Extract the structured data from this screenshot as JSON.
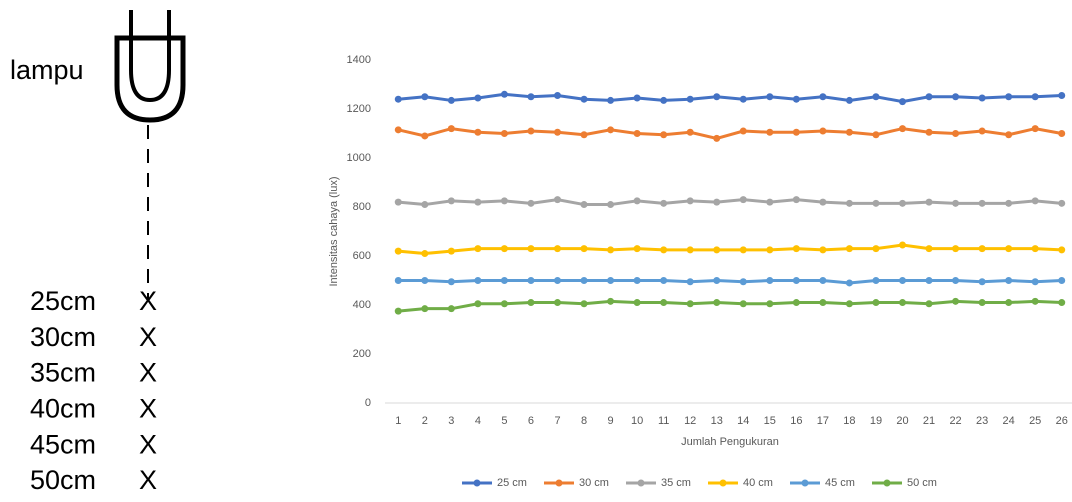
{
  "diagram": {
    "lamp_label": "lampu",
    "distances": [
      "25cm",
      "30cm",
      "35cm",
      "40cm",
      "45cm",
      "50cm"
    ],
    "marker": "X"
  },
  "chart_data": {
    "type": "line",
    "x_label": "Jumlah Pengukuran",
    "y_label": "Intensitas cahaya (lux)",
    "categories": [
      "1",
      "2",
      "3",
      "4",
      "5",
      "6",
      "7",
      "8",
      "9",
      "10",
      "11",
      "12",
      "13",
      "14",
      "15",
      "16",
      "17",
      "18",
      "19",
      "20",
      "21",
      "22",
      "23",
      "24",
      "25",
      "26"
    ],
    "ylim": [
      0,
      1400
    ],
    "yticks": [
      0,
      200,
      400,
      600,
      800,
      1000,
      1200,
      1400
    ],
    "grid": false,
    "legend": "bottom",
    "series": [
      {
        "name": "25 cm",
        "color": "#4472c4",
        "values": [
          1240,
          1250,
          1235,
          1245,
          1260,
          1250,
          1255,
          1240,
          1235,
          1245,
          1235,
          1240,
          1250,
          1240,
          1250,
          1240,
          1250,
          1235,
          1250,
          1230,
          1250,
          1250,
          1245,
          1250,
          1250,
          1255
        ]
      },
      {
        "name": "30 cm",
        "color": "#ed7d31",
        "values": [
          1115,
          1090,
          1120,
          1105,
          1100,
          1110,
          1105,
          1095,
          1115,
          1100,
          1095,
          1105,
          1080,
          1110,
          1105,
          1105,
          1110,
          1105,
          1095,
          1120,
          1105,
          1100,
          1110,
          1095,
          1120,
          1100
        ]
      },
      {
        "name": "35 cm",
        "color": "#a5a5a5",
        "values": [
          820,
          810,
          825,
          820,
          825,
          815,
          830,
          810,
          810,
          825,
          815,
          825,
          820,
          830,
          820,
          830,
          820,
          815,
          815,
          815,
          820,
          815,
          815,
          815,
          825,
          815
        ]
      },
      {
        "name": "40 cm",
        "color": "#ffc000",
        "values": [
          620,
          610,
          620,
          630,
          630,
          630,
          630,
          630,
          625,
          630,
          625,
          625,
          625,
          625,
          625,
          630,
          625,
          630,
          630,
          645,
          630,
          630,
          630,
          630,
          630,
          625
        ]
      },
      {
        "name": "45 cm",
        "color": "#5b9bd5",
        "values": [
          500,
          500,
          495,
          500,
          500,
          500,
          500,
          500,
          500,
          500,
          500,
          495,
          500,
          495,
          500,
          500,
          500,
          490,
          500,
          500,
          500,
          500,
          495,
          500,
          495,
          500
        ]
      },
      {
        "name": "50 cm",
        "color": "#70ad47",
        "values": [
          375,
          385,
          385,
          405,
          405,
          410,
          410,
          405,
          415,
          410,
          410,
          405,
          410,
          405,
          405,
          410,
          410,
          405,
          410,
          410,
          405,
          415,
          410,
          410,
          415,
          410
        ]
      }
    ]
  }
}
